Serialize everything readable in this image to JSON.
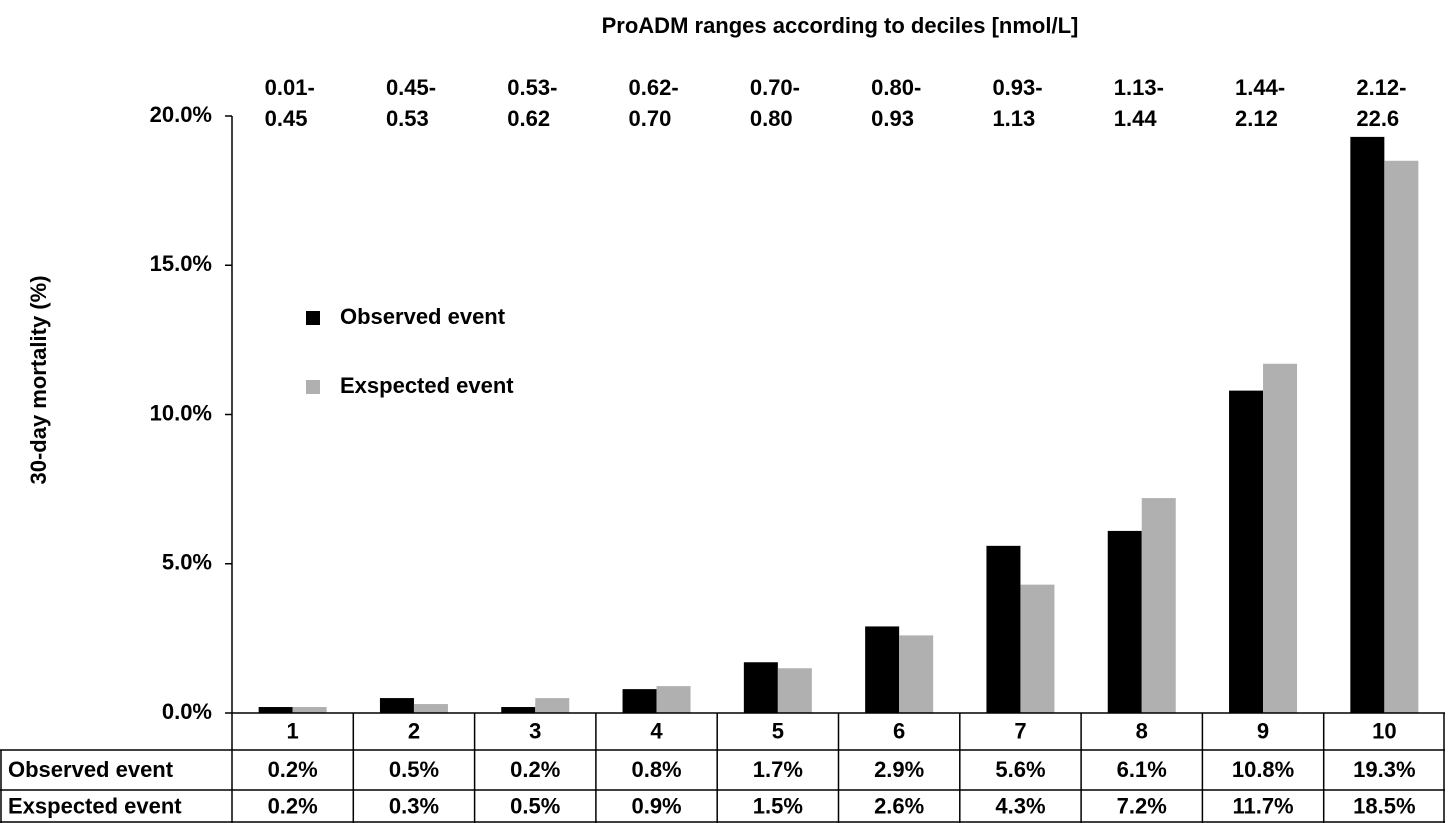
{
  "chart_data": {
    "type": "bar",
    "title": "ProADM ranges according to deciles [nmol/L]",
    "y_label": "30-day mortality (%)",
    "categories": [
      "1",
      "2",
      "3",
      "4",
      "5",
      "6",
      "7",
      "8",
      "9",
      "10"
    ],
    "range_labels": [
      [
        "0.01-",
        "0.45"
      ],
      [
        "0.45-",
        "0.53"
      ],
      [
        "0.53-",
        "0.62"
      ],
      [
        "0.62-",
        "0.70"
      ],
      [
        "0.70-",
        "0.80"
      ],
      [
        "0.80-",
        "0.93"
      ],
      [
        "0.93-",
        "1.13"
      ],
      [
        "1.13-",
        "1.44"
      ],
      [
        "1.44-",
        "2.12"
      ],
      [
        "2.12-",
        "22.6"
      ]
    ],
    "series": [
      {
        "name": "Observed event",
        "color": "#000000",
        "values": [
          0.2,
          0.5,
          0.2,
          0.8,
          1.7,
          2.9,
          5.6,
          6.1,
          10.8,
          19.3
        ],
        "value_labels": [
          "0.2%",
          "0.5%",
          "0.2%",
          "0.8%",
          "1.7%",
          "2.9%",
          "5.6%",
          "6.1%",
          "10.8%",
          "19.3%"
        ]
      },
      {
        "name": "Exspected event",
        "color": "#b0b0b0",
        "values": [
          0.2,
          0.3,
          0.5,
          0.9,
          1.5,
          2.6,
          4.3,
          7.2,
          11.7,
          18.5
        ],
        "value_labels": [
          "0.2%",
          "0.3%",
          "0.5%",
          "0.9%",
          "1.5%",
          "2.6%",
          "4.3%",
          "7.2%",
          "11.7%",
          "18.5%"
        ]
      }
    ],
    "ylim": [
      0,
      20
    ],
    "yticks": [
      {
        "value": 0,
        "label": "0.0%"
      },
      {
        "value": 5,
        "label": "5.0%"
      },
      {
        "value": 10,
        "label": "10.0%"
      },
      {
        "value": 15,
        "label": "15.0%"
      },
      {
        "value": 20,
        "label": "20.0%"
      }
    ],
    "grid": false,
    "legend": "upper left"
  }
}
